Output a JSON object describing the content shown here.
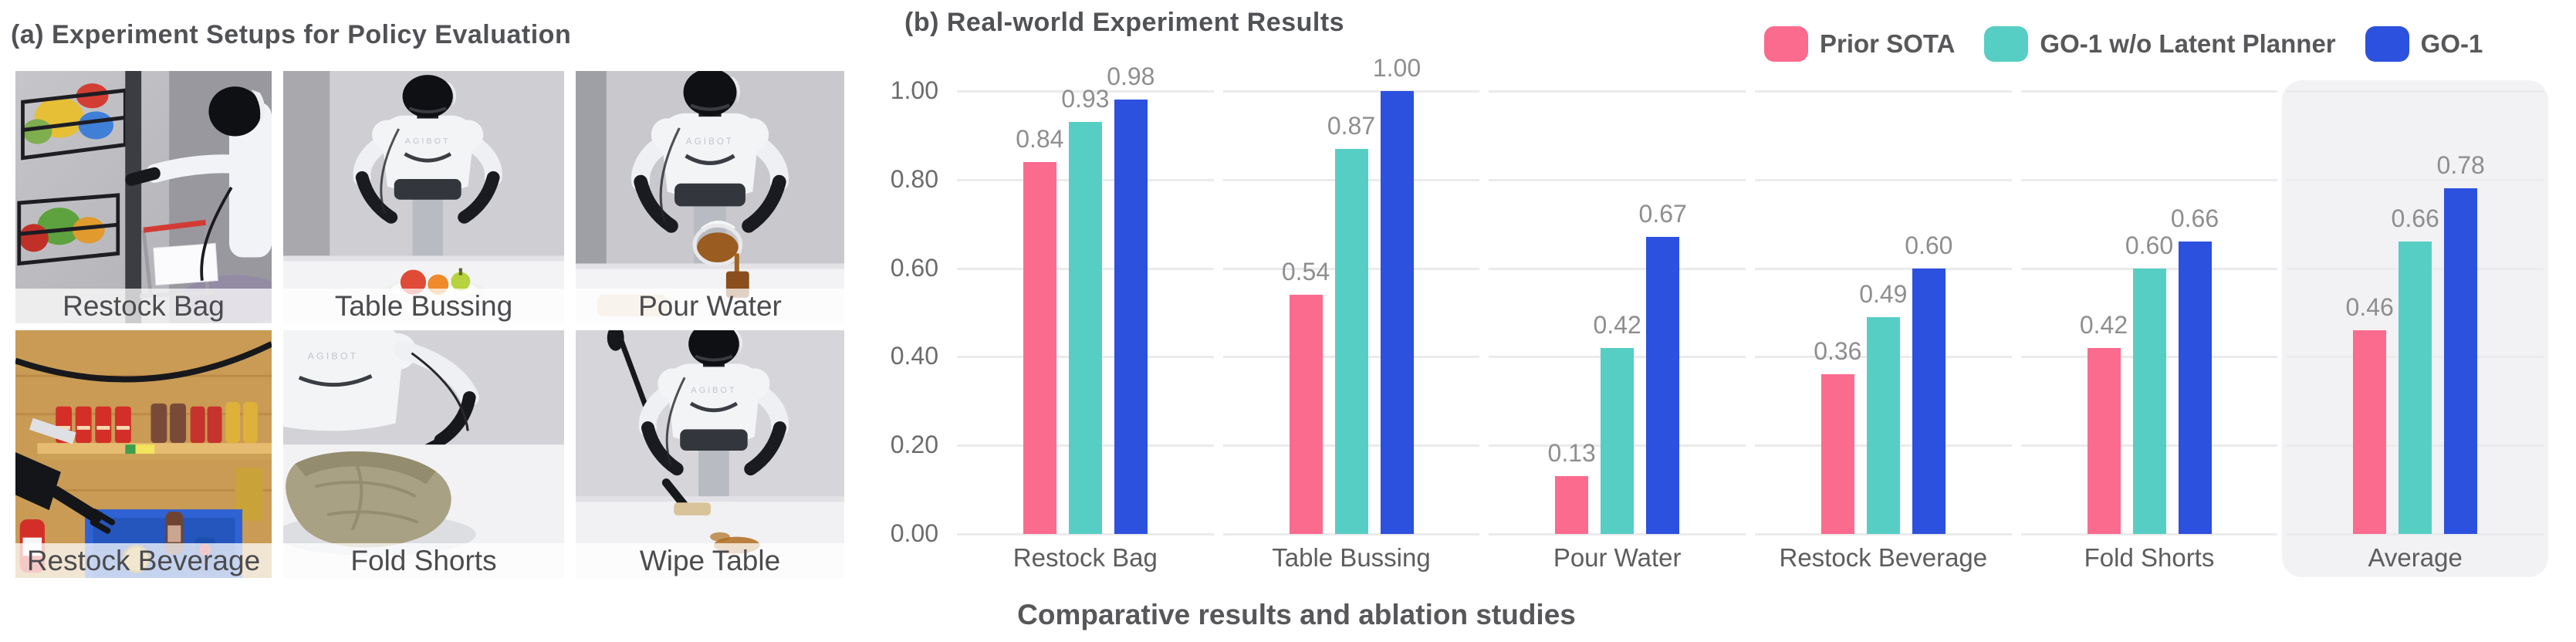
{
  "panel_a": {
    "title": "(a) Experiment Setups for Policy Evaluation",
    "robot_brand": "AGIBOT",
    "photos": [
      {
        "label": "Restock Bag"
      },
      {
        "label": "Table Bussing"
      },
      {
        "label": "Pour Water"
      },
      {
        "label": "Restock Beverage"
      },
      {
        "label": "Fold Shorts"
      },
      {
        "label": "Wipe Table"
      }
    ]
  },
  "panel_b": {
    "title": "(b) Real-world Experiment Results",
    "caption": "Comparative results and ablation studies"
  },
  "chart_data": {
    "type": "bar",
    "title": "(b) Real-world Experiment Results",
    "categories": [
      "Restock Bag",
      "Table Bussing",
      "Pour Water",
      "Restock Beverage",
      "Fold Shorts",
      "Average"
    ],
    "series": [
      {
        "name": "Prior SOTA",
        "color": "#FB6B8E",
        "values": [
          0.84,
          0.54,
          0.13,
          0.36,
          0.42,
          0.46
        ]
      },
      {
        "name": "GO-1 w/o Latent Planner",
        "color": "#57CEC4",
        "values": [
          0.93,
          0.87,
          0.42,
          0.49,
          0.6,
          0.66
        ]
      },
      {
        "name": "GO-1",
        "color": "#2C51DF",
        "values": [
          0.98,
          1.0,
          0.67,
          0.6,
          0.66,
          0.78
        ]
      }
    ],
    "xlabel": "",
    "ylabel": "",
    "ylim": [
      0,
      1.0
    ],
    "yticks": [
      "0.00",
      "0.20",
      "0.40",
      "0.60",
      "0.80",
      "1.00"
    ],
    "grid": true,
    "legend_position": "top-right",
    "highlight_category": "Average",
    "caption": "Comparative results and ablation studies"
  }
}
